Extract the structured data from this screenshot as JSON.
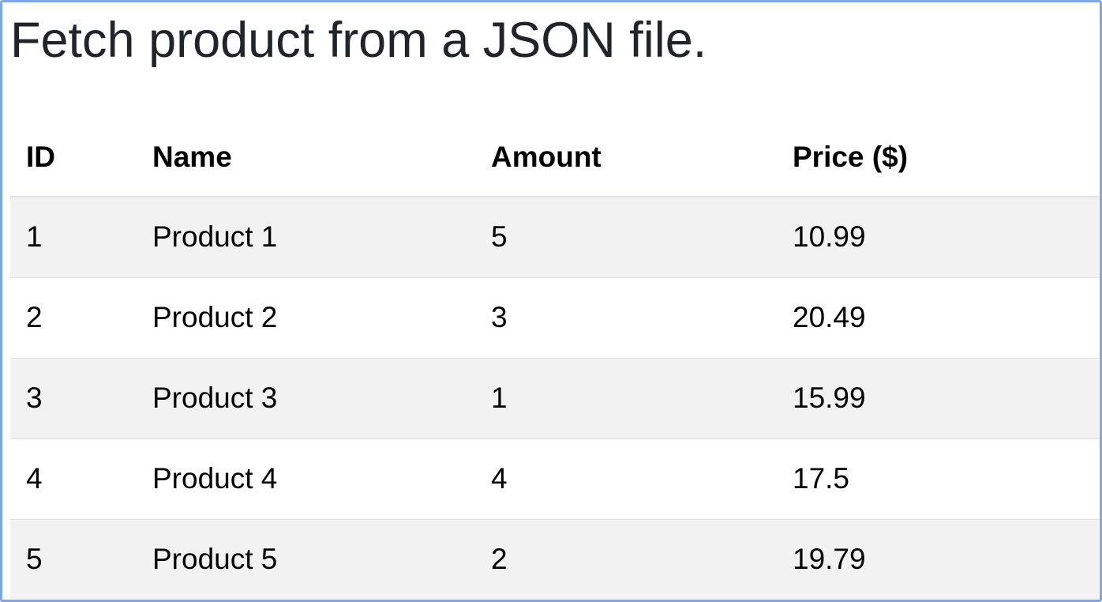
{
  "page": {
    "title": "Fetch product from a JSON file."
  },
  "table": {
    "headers": {
      "id": "ID",
      "name": "Name",
      "amount": "Amount",
      "price": "Price ($)"
    },
    "rows": [
      {
        "id": "1",
        "name": "Product 1",
        "amount": "5",
        "price": "10.99"
      },
      {
        "id": "2",
        "name": "Product 2",
        "amount": "3",
        "price": "20.49"
      },
      {
        "id": "3",
        "name": "Product 3",
        "amount": "1",
        "price": "15.99"
      },
      {
        "id": "4",
        "name": "Product 4",
        "amount": "4",
        "price": "17.5"
      },
      {
        "id": "5",
        "name": "Product 5",
        "amount": "2",
        "price": "19.79"
      }
    ]
  },
  "colors": {
    "frame_border": "#7fa7e6",
    "stripe": "#f2f2f2",
    "divider": "#dee2e6"
  }
}
